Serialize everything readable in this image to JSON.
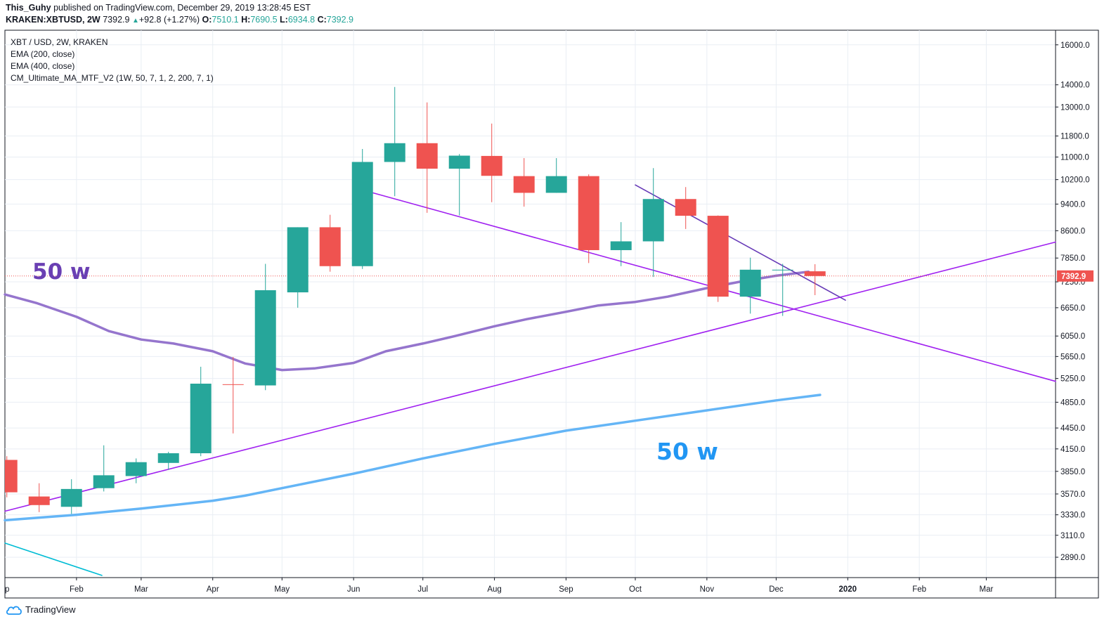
{
  "header": {
    "author": "This_Guhy",
    "published_text": "published on TradingView.com, December 29, 2019 13:28:45 EST",
    "symbol": "KRAKEN:XBTUSD, 2W",
    "last": "7392.9",
    "change": "+92.8 (+1.27%)",
    "o_label": "O:",
    "o_val": "7510.1",
    "h_label": "H:",
    "h_val": "7690.5",
    "l_label": "L:",
    "l_val": "6934.8",
    "c_label": "C:",
    "c_val": "7392.9"
  },
  "legend": {
    "title": "XBT / USD, 2W, KRAKEN",
    "items": [
      "EMA (200, close)",
      "EMA (400, close)",
      "CM_Ultimate_MA_MTF_V2 (1W, 50, 7, 1, 2, 200, 7, 1)"
    ]
  },
  "annotations": {
    "purple_text": "50 w",
    "blue_text": "50 w"
  },
  "brand": {
    "name": "TradingView"
  },
  "colors": {
    "up": "#26a69a",
    "down": "#ef5350",
    "purple_ma": "#9575cd",
    "blue_ma": "#64b5f6",
    "trendline": "#a020f0",
    "trendline_dark": "#673ab7",
    "cyan_line": "#00bcd4",
    "grid": "#e9eef4"
  },
  "chart_data": {
    "type": "candlestick",
    "title": "XBT / USD, 2W, KRAKEN",
    "y_scale": "log",
    "ylim": [
      2700,
      16800
    ],
    "xlim": [
      "2019-01-01",
      "2020-03-31"
    ],
    "y_ticks": [
      16000,
      14000,
      13000,
      11800,
      11000,
      10200,
      9400,
      8600,
      7850,
      7250,
      6650,
      6050,
      5650,
      5250,
      4850,
      4450,
      4150,
      3850,
      3570,
      3330,
      3110,
      2890
    ],
    "y_tick_labels": [
      "16000.0",
      "14000.0",
      "13000.0",
      "11800.0",
      "11000.0",
      "10200.0",
      "9400.0",
      "8600.0",
      "7850.0",
      "7250.0",
      "6650.0",
      "6050.0",
      "5650.0",
      "5250.0",
      "4850.0",
      "4450.0",
      "4150.0",
      "3850.0",
      "3570.0",
      "3330.0",
      "3110.0",
      "2890.0"
    ],
    "x_ticks": [
      "2019-01-01",
      "2019-02-01",
      "2019-03-01",
      "2019-04-01",
      "2019-05-01",
      "2019-06-01",
      "2019-07-01",
      "2019-08-01",
      "2019-09-01",
      "2019-10-01",
      "2019-11-01",
      "2019-12-01",
      "2020-01-01",
      "2020-02-01",
      "2020-03-01"
    ],
    "x_tick_labels": [
      "p",
      "Feb",
      "Mar",
      "Apr",
      "May",
      "Jun",
      "Jul",
      "Aug",
      "Sep",
      "Oct",
      "Nov",
      "Dec",
      "2020",
      "Feb",
      "Mar"
    ],
    "last_price": 7392.9,
    "last_price_label": "7392.9",
    "candles": [
      {
        "date": "2018-12-31",
        "open": 4000,
        "high": 4050,
        "low": 3530,
        "close": 3590
      },
      {
        "date": "2019-01-14",
        "open": 3540,
        "high": 3700,
        "low": 3360,
        "close": 3440
      },
      {
        "date": "2019-01-28",
        "open": 3420,
        "high": 3750,
        "low": 3340,
        "close": 3630
      },
      {
        "date": "2019-02-11",
        "open": 3640,
        "high": 4200,
        "low": 3600,
        "close": 3800
      },
      {
        "date": "2019-02-25",
        "open": 3790,
        "high": 4020,
        "low": 3700,
        "close": 3970
      },
      {
        "date": "2019-03-11",
        "open": 3960,
        "high": 4110,
        "low": 3870,
        "close": 4090
      },
      {
        "date": "2019-03-25",
        "open": 4090,
        "high": 5460,
        "low": 4050,
        "close": 5160
      },
      {
        "date": "2019-04-08",
        "open": 5150,
        "high": 5640,
        "low": 4370,
        "close": 5140
      },
      {
        "date": "2019-04-22",
        "open": 5130,
        "high": 7700,
        "low": 5050,
        "close": 7050
      },
      {
        "date": "2019-05-06",
        "open": 7000,
        "high": 8700,
        "low": 6650,
        "close": 8700
      },
      {
        "date": "2019-05-20",
        "open": 8700,
        "high": 9070,
        "low": 7500,
        "close": 7640
      },
      {
        "date": "2019-06-03",
        "open": 7640,
        "high": 11300,
        "low": 7570,
        "close": 10820
      },
      {
        "date": "2019-06-17",
        "open": 10820,
        "high": 13900,
        "low": 9650,
        "close": 11520
      },
      {
        "date": "2019-07-01",
        "open": 11520,
        "high": 13200,
        "low": 9130,
        "close": 10580
      },
      {
        "date": "2019-07-15",
        "open": 10580,
        "high": 11110,
        "low": 9050,
        "close": 11050
      },
      {
        "date": "2019-07-29",
        "open": 11040,
        "high": 12300,
        "low": 9460,
        "close": 10330
      },
      {
        "date": "2019-08-12",
        "open": 10320,
        "high": 10960,
        "low": 9320,
        "close": 9760
      },
      {
        "date": "2019-08-26",
        "open": 9760,
        "high": 10960,
        "low": 9760,
        "close": 10320
      },
      {
        "date": "2019-09-09",
        "open": 10320,
        "high": 10380,
        "low": 7720,
        "close": 8060
      },
      {
        "date": "2019-09-23",
        "open": 8060,
        "high": 8850,
        "low": 7640,
        "close": 8300
      },
      {
        "date": "2019-10-07",
        "open": 8300,
        "high": 10600,
        "low": 7370,
        "close": 9560
      },
      {
        "date": "2019-10-21",
        "open": 9560,
        "high": 9950,
        "low": 8650,
        "close": 9040
      },
      {
        "date": "2019-11-04",
        "open": 9040,
        "high": 9050,
        "low": 6780,
        "close": 6900
      },
      {
        "date": "2019-11-18",
        "open": 6900,
        "high": 7860,
        "low": 6520,
        "close": 7550
      },
      {
        "date": "2019-12-02",
        "open": 7550,
        "high": 7700,
        "low": 6470,
        "close": 7550
      },
      {
        "date": "2019-12-16",
        "open": 7510.1,
        "high": 7690.5,
        "low": 6934.8,
        "close": 7392.9
      }
    ],
    "series": [
      {
        "name": "EMA (200, close)",
        "color": "#9575cd",
        "points": [
          [
            "2019-01-01",
            6950
          ],
          [
            "2019-01-15",
            6750
          ],
          [
            "2019-02-01",
            6450
          ],
          [
            "2019-02-15",
            6150
          ],
          [
            "2019-03-01",
            5980
          ],
          [
            "2019-03-15",
            5900
          ],
          [
            "2019-04-01",
            5750
          ],
          [
            "2019-04-15",
            5520
          ],
          [
            "2019-05-01",
            5400
          ],
          [
            "2019-05-15",
            5430
          ],
          [
            "2019-06-01",
            5530
          ],
          [
            "2019-06-15",
            5750
          ],
          [
            "2019-07-01",
            5900
          ],
          [
            "2019-07-15",
            6050
          ],
          [
            "2019-08-01",
            6250
          ],
          [
            "2019-08-15",
            6400
          ],
          [
            "2019-09-01",
            6560
          ],
          [
            "2019-09-15",
            6700
          ],
          [
            "2019-10-01",
            6780
          ],
          [
            "2019-10-15",
            6900
          ],
          [
            "2019-11-01",
            7100
          ],
          [
            "2019-11-15",
            7250
          ],
          [
            "2019-12-01",
            7400
          ],
          [
            "2019-12-15",
            7500
          ]
        ]
      },
      {
        "name": "EMA (400, close)",
        "color": "#64b5f6",
        "points": [
          [
            "2019-01-01",
            3270
          ],
          [
            "2019-02-01",
            3330
          ],
          [
            "2019-03-01",
            3400
          ],
          [
            "2019-04-01",
            3490
          ],
          [
            "2019-04-15",
            3550
          ],
          [
            "2019-05-01",
            3640
          ],
          [
            "2019-06-01",
            3820
          ],
          [
            "2019-07-01",
            4020
          ],
          [
            "2019-08-01",
            4220
          ],
          [
            "2019-09-01",
            4410
          ],
          [
            "2019-10-01",
            4560
          ],
          [
            "2019-11-01",
            4720
          ],
          [
            "2019-12-01",
            4880
          ],
          [
            "2019-12-20",
            4970
          ]
        ]
      },
      {
        "name": "Uptrend line",
        "color": "#a020f0",
        "points": [
          [
            "2019-01-01",
            3370
          ],
          [
            "2020-03-31",
            8280
          ]
        ]
      },
      {
        "name": "Downtrend line (from Jun)",
        "color": "#a020f0",
        "points": [
          [
            "2019-06-05",
            9850
          ],
          [
            "2020-03-31",
            5200
          ]
        ]
      },
      {
        "name": "Downtrend line (from Oct)",
        "color": "#673ab7",
        "points": [
          [
            "2019-10-01",
            10020
          ],
          [
            "2019-12-31",
            6820
          ]
        ]
      },
      {
        "name": "Cyan line",
        "color": "#00bcd4",
        "points": [
          [
            "2019-01-01",
            3030
          ],
          [
            "2019-02-12",
            2720
          ]
        ]
      }
    ]
  }
}
